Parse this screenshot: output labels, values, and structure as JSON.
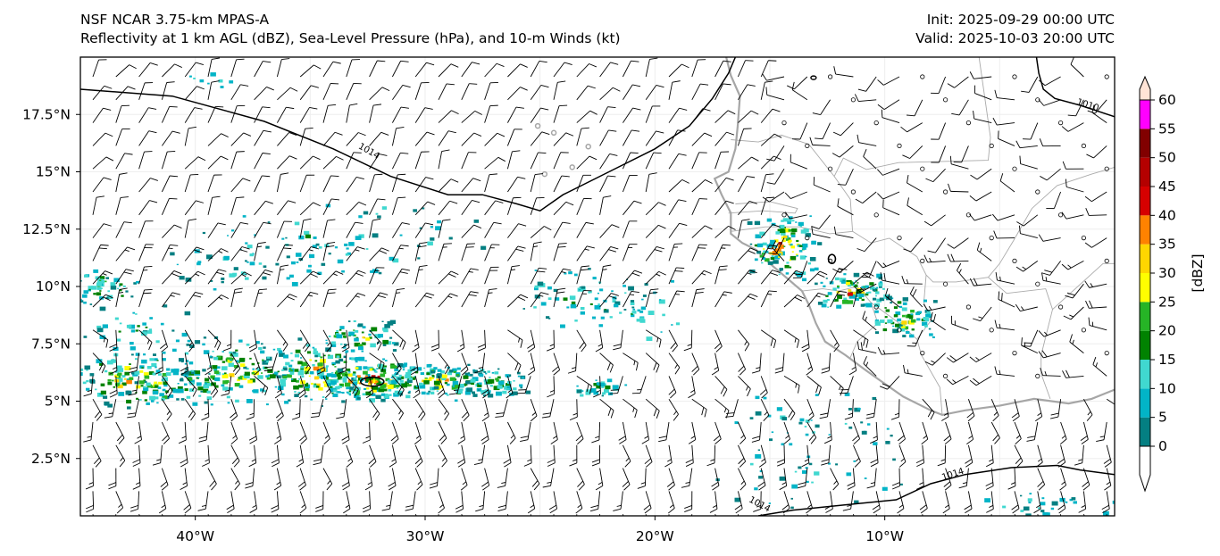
{
  "header": {
    "title_line1": "NSF NCAR 3.75-km MPAS-A",
    "title_line2": "Reflectivity at 1 km AGL (dBZ), Sea-Level Pressure (hPa), and 10-m Winds (kt)",
    "init": "Init: 2025-09-29 00:00 UTC",
    "valid": "Valid: 2025-10-03 20:00 UTC"
  },
  "map": {
    "lon_range": [
      -45,
      0
    ],
    "lat_range": [
      0,
      20
    ],
    "x_ticks": [
      {
        "lon": -40,
        "label": "40°W"
      },
      {
        "lon": -30,
        "label": "30°W"
      },
      {
        "lon": -20,
        "label": "20°W"
      },
      {
        "lon": -10,
        "label": "10°W"
      }
    ],
    "y_ticks": [
      {
        "lat": 17.5,
        "label": "17.5°N"
      },
      {
        "lat": 15,
        "label": "15°N"
      },
      {
        "lat": 12.5,
        "label": "12.5°N"
      },
      {
        "lat": 10,
        "label": "10°N"
      },
      {
        "lat": 7.5,
        "label": "7.5°N"
      },
      {
        "lat": 5,
        "label": "5°N"
      },
      {
        "lat": 2.5,
        "label": "2.5°N"
      }
    ],
    "contour_labels": [
      {
        "text": "1014",
        "lon": -32.5,
        "lat": 15.8,
        "angle": 30
      },
      {
        "text": "1010",
        "lon": -1.2,
        "lat": 17.8,
        "angle": 18
      },
      {
        "text": "1014",
        "lon": -7.0,
        "lat": 1.7,
        "angle": -18
      },
      {
        "text": "1014",
        "lon": -15.5,
        "lat": 0.4,
        "angle": 28
      }
    ],
    "isobars": [
      [
        [
          -45,
          18.6
        ],
        [
          -41,
          18.3
        ],
        [
          -37,
          17.2
        ],
        [
          -34,
          16.0
        ],
        [
          -31.5,
          14.8
        ],
        [
          -29,
          14.0
        ],
        [
          -27.5,
          14.0
        ],
        [
          -26,
          13.6
        ],
        [
          -25,
          13.3
        ],
        [
          -24,
          14.0
        ],
        [
          -22,
          15.0
        ],
        [
          -20,
          16.0
        ],
        [
          -18.5,
          17.0
        ],
        [
          -17.5,
          18.2
        ],
        [
          -16.8,
          19.3
        ],
        [
          -16.5,
          20
        ]
      ],
      [
        [
          -3.4,
          20
        ],
        [
          -3.3,
          19.3
        ],
        [
          -3.1,
          18.6
        ],
        [
          -2.6,
          18.2
        ],
        [
          -1.5,
          17.9
        ],
        [
          0,
          17.4
        ]
      ],
      [
        [
          -15.5,
          0
        ],
        [
          -14,
          0.25
        ],
        [
          -11.5,
          0.5
        ],
        [
          -9.5,
          0.7
        ],
        [
          -8,
          1.4
        ],
        [
          -6.5,
          1.8
        ],
        [
          -4.5,
          2.1
        ],
        [
          -2.5,
          2.2
        ],
        [
          -1.5,
          2.0
        ],
        [
          0,
          1.8
        ]
      ]
    ],
    "coastline": [
      [
        [
          -16.9,
          20
        ],
        [
          -16.7,
          19.2
        ],
        [
          -16.3,
          18.3
        ],
        [
          -16.4,
          17.0
        ],
        [
          -16.5,
          16.0
        ],
        [
          -16.8,
          15.0
        ],
        [
          -17.4,
          14.7
        ],
        [
          -17.1,
          14.0
        ],
        [
          -16.7,
          13.2
        ],
        [
          -16.7,
          12.3
        ],
        [
          -16.2,
          11.9
        ],
        [
          -15.6,
          11.6
        ],
        [
          -15.0,
          11.0
        ],
        [
          -14.3,
          10.4
        ],
        [
          -13.6,
          9.8
        ],
        [
          -13.3,
          9.2
        ],
        [
          -13.0,
          8.4
        ],
        [
          -12.6,
          7.6
        ],
        [
          -11.7,
          7.0
        ],
        [
          -10.9,
          6.4
        ],
        [
          -10.2,
          5.9
        ],
        [
          -9.2,
          5.2
        ],
        [
          -8.0,
          4.6
        ],
        [
          -7.5,
          4.4
        ],
        [
          -6.5,
          4.6
        ],
        [
          -5.0,
          4.8
        ],
        [
          -3.5,
          5.1
        ],
        [
          -2.0,
          4.9
        ],
        [
          -1.0,
          5.1
        ],
        [
          0,
          5.5
        ]
      ]
    ],
    "borders": [
      [
        [
          -16.7,
          16.4
        ],
        [
          -15.5,
          16.3
        ],
        [
          -14.5,
          16.6
        ],
        [
          -13.3,
          16.2
        ],
        [
          -12.2,
          14.8
        ],
        [
          -11.5,
          13.8
        ],
        [
          -11.4,
          12.4
        ],
        [
          -12.4,
          12.3
        ],
        [
          -13.7,
          12.6
        ],
        [
          -15.2,
          12.6
        ],
        [
          -16.7,
          12.4
        ]
      ],
      [
        [
          -16.5,
          13.6
        ],
        [
          -15.0,
          13.7
        ],
        [
          -13.8,
          13.4
        ],
        [
          -13.9,
          13.2
        ],
        [
          -15.3,
          13.3
        ],
        [
          -16.8,
          13.2
        ]
      ],
      [
        [
          -12.2,
          14.8
        ],
        [
          -11.8,
          15.6
        ],
        [
          -10.8,
          15.1
        ],
        [
          -9.4,
          15.4
        ],
        [
          -5.5,
          15.5
        ],
        [
          -5.4,
          16.5
        ],
        [
          -5.9,
          20
        ]
      ],
      [
        [
          -11.4,
          12.4
        ],
        [
          -10.6,
          11.9
        ],
        [
          -9.8,
          12.1
        ],
        [
          -8.6,
          11.3
        ],
        [
          -8.2,
          10.5
        ],
        [
          -7.9,
          10.2
        ],
        [
          -6.9,
          10.2
        ],
        [
          -5.5,
          10.4
        ],
        [
          -5.0,
          11.0
        ],
        [
          -4.4,
          12.0
        ],
        [
          -3.6,
          13.4
        ],
        [
          -2.5,
          14.4
        ],
        [
          -1.0,
          14.9
        ],
        [
          0,
          15.2
        ]
      ],
      [
        [
          -13.6,
          9.8
        ],
        [
          -12.7,
          9.9
        ],
        [
          -12.0,
          9.8
        ],
        [
          -11.2,
          10.0
        ],
        [
          -10.6,
          9.3
        ],
        [
          -10.3,
          8.4
        ],
        [
          -11.2,
          7.6
        ],
        [
          -11.5,
          6.9
        ]
      ],
      [
        [
          -8.2,
          10.5
        ],
        [
          -8.3,
          9.3
        ],
        [
          -8.0,
          8.5
        ],
        [
          -8.6,
          7.7
        ],
        [
          -8.4,
          7.0
        ],
        [
          -7.6,
          5.6
        ],
        [
          -7.5,
          4.4
        ]
      ],
      [
        [
          -5.5,
          10.4
        ],
        [
          -4.7,
          9.7
        ],
        [
          -3.0,
          9.9
        ],
        [
          -2.7,
          9.0
        ],
        [
          -3.2,
          7.0
        ],
        [
          -3.2,
          6.2
        ],
        [
          -2.8,
          5.1
        ]
      ],
      [
        [
          -2.7,
          9.0
        ],
        [
          -0.5,
          11.0
        ],
        [
          0,
          11.0
        ]
      ],
      [
        [
          -10.6,
          9.3
        ],
        [
          -9.5,
          8.5
        ],
        [
          -8.6,
          7.7
        ]
      ]
    ],
    "reflectivity_clusters": [
      {
        "lon": -42.5,
        "lat": 6.0,
        "w": 3.2,
        "h": 1.4,
        "n": 160,
        "peak": 0.65
      },
      {
        "lon": -38.5,
        "lat": 6.4,
        "w": 3.0,
        "h": 1.6,
        "n": 150,
        "peak": 0.65
      },
      {
        "lon": -35.0,
        "lat": 6.3,
        "w": 2.5,
        "h": 1.6,
        "n": 150,
        "peak": 0.75
      },
      {
        "lon": -32.5,
        "lat": 6.0,
        "w": 2.2,
        "h": 1.0,
        "n": 170,
        "peak": 0.95
      },
      {
        "lon": -29.5,
        "lat": 5.9,
        "w": 2.6,
        "h": 0.9,
        "n": 140,
        "peak": 0.7
      },
      {
        "lon": -27.0,
        "lat": 5.9,
        "w": 1.4,
        "h": 0.7,
        "n": 60,
        "peak": 0.45
      },
      {
        "lon": -33.0,
        "lat": 7.9,
        "w": 2.0,
        "h": 0.8,
        "n": 60,
        "peak": 0.6
      },
      {
        "lon": -44.0,
        "lat": 10.0,
        "w": 1.6,
        "h": 0.9,
        "n": 50,
        "peak": 0.45
      },
      {
        "lon": -33.0,
        "lat": 12.3,
        "w": 6.5,
        "h": 1.8,
        "n": 60,
        "peak": 0.25
      },
      {
        "lon": -23.5,
        "lat": 9.5,
        "w": 3.5,
        "h": 1.5,
        "n": 60,
        "peak": 0.3
      },
      {
        "lon": -20.5,
        "lat": 8.8,
        "w": 2.0,
        "h": 1.5,
        "n": 30,
        "peak": 0.25
      },
      {
        "lon": -14.5,
        "lat": 11.8,
        "w": 1.6,
        "h": 1.5,
        "n": 120,
        "peak": 0.9
      },
      {
        "lon": -11.5,
        "lat": 9.8,
        "w": 2.0,
        "h": 1.0,
        "n": 90,
        "peak": 0.7
      },
      {
        "lon": -9.2,
        "lat": 8.7,
        "w": 1.5,
        "h": 1.0,
        "n": 70,
        "peak": 0.65
      },
      {
        "lon": -22.5,
        "lat": 5.6,
        "w": 1.5,
        "h": 0.5,
        "n": 30,
        "peak": 0.4
      },
      {
        "lon": -13.0,
        "lat": 3.0,
        "w": 4.5,
        "h": 3.0,
        "n": 70,
        "peak": 0.15
      },
      {
        "lon": -2.5,
        "lat": 0.5,
        "w": 3.5,
        "h": 0.6,
        "n": 25,
        "peak": 0.2
      },
      {
        "lon": -38.0,
        "lat": 11.0,
        "w": 4.5,
        "h": 1.5,
        "n": 45,
        "peak": 0.2
      },
      {
        "lon": -43.0,
        "lat": 8.3,
        "w": 3.0,
        "h": 1.0,
        "n": 35,
        "peak": 0.3
      },
      {
        "lon": -39.5,
        "lat": 19.1,
        "w": 3.0,
        "h": 0.6,
        "n": 8,
        "peak": 0.1
      }
    ],
    "colorbar": {
      "label": "[dBZ]",
      "ticks": [
        "0",
        "5",
        "10",
        "15",
        "20",
        "25",
        "30",
        "35",
        "40",
        "45",
        "50",
        "55",
        "60"
      ],
      "colors": [
        "#ffffff",
        "#047f82",
        "#02b4c7",
        "#40d8d0",
        "#018201",
        "#26b426",
        "#fffe00",
        "#ffd600",
        "#ff8200",
        "#d60000",
        "#b40000",
        "#810000",
        "#ff00ff",
        "#ffe4d6"
      ]
    }
  }
}
